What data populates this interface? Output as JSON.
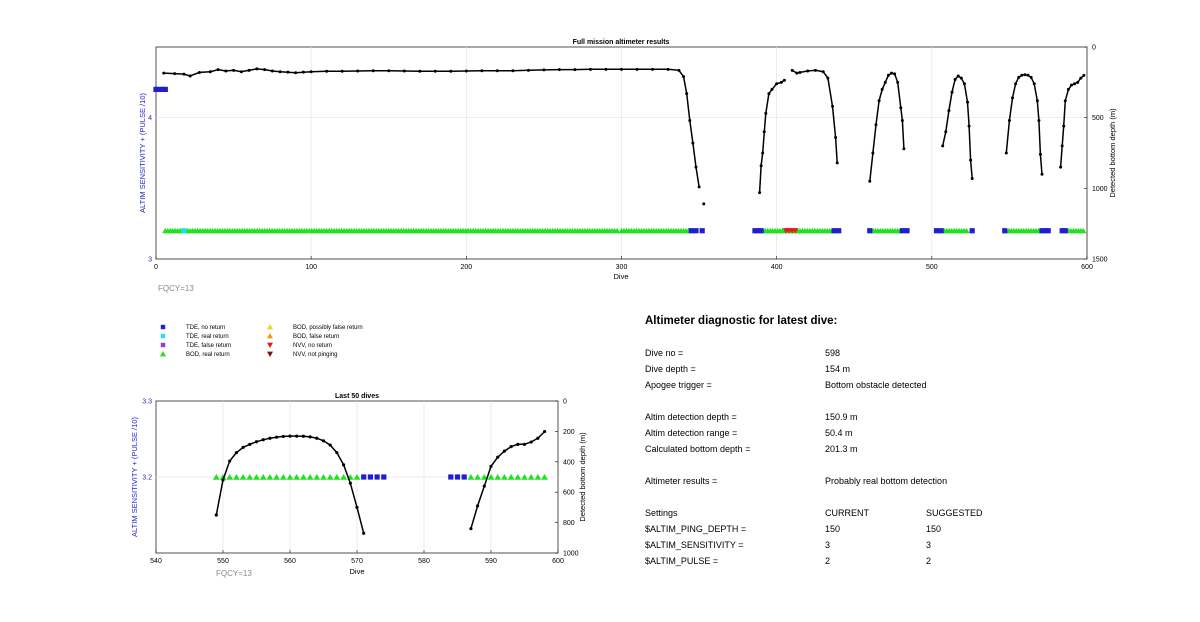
{
  "top_chart": {
    "title": "Full mission altimeter results",
    "xlabel": "Dive",
    "ylabel_left": "ALTIM SENSITIVITY + (PULSE /10)",
    "ylabel_right": "Detected bottom depth (m)",
    "x_ticks": [
      "0",
      "100",
      "200",
      "300",
      "400",
      "500",
      "600"
    ],
    "y_left_ticks": [
      "3",
      "4"
    ],
    "y_right_ticks": [
      "0",
      "500",
      "1000",
      "1500"
    ],
    "fqcy_label": "FQCY=13"
  },
  "bottom_chart": {
    "title": "Last 50 dives",
    "xlabel": "Dive",
    "ylabel_left": "ALTIM SENSITIVITY + (PULSE /10)",
    "ylabel_right": "Detected bottom depth (m)",
    "x_ticks": [
      "540",
      "550",
      "560",
      "570",
      "580",
      "590",
      "600"
    ],
    "y_left_ticks": [
      "3.2",
      "3.3"
    ],
    "y_right_ticks": [
      "0",
      "200",
      "400",
      "600",
      "800",
      "1000"
    ],
    "fqcy_label": "FQCY=13"
  },
  "legend": {
    "items": [
      {
        "label": "TDE, no return",
        "symbol": "square",
        "color": "#1f1fd0"
      },
      {
        "label": "TDE, real return",
        "symbol": "square",
        "color": "#22e0e8"
      },
      {
        "label": "TDE, false return",
        "symbol": "square",
        "color": "#8a3fd8"
      },
      {
        "label": "BOD, real return",
        "symbol": "triangle-up",
        "color": "#22e022"
      },
      {
        "label": "BOD, possibly false return",
        "symbol": "triangle-up",
        "color": "#f2d21a"
      },
      {
        "label": "BOD, false return",
        "symbol": "triangle-up",
        "color": "#f29a1a"
      },
      {
        "label": "NVV, no return",
        "symbol": "triangle-down",
        "color": "#e02020"
      },
      {
        "label": "NVV, not pinging",
        "symbol": "triangle-down",
        "color": "#7a1010"
      }
    ]
  },
  "diagnostic": {
    "title": "Altimeter diagnostic for latest dive:",
    "rows": [
      {
        "label": "Dive no =",
        "value": "598",
        "extra": ""
      },
      {
        "label": "Dive depth =",
        "value": "154 m",
        "extra": ""
      },
      {
        "label": "Apogee trigger =",
        "value": "Bottom obstacle detected",
        "extra": ""
      },
      {
        "label": "Altim detection depth =",
        "value": "150.9 m",
        "extra": ""
      },
      {
        "label": "Altim detection range =",
        "value": "50.4 m",
        "extra": ""
      },
      {
        "label": "Calculated bottom depth =",
        "value": "201.3 m",
        "extra": ""
      },
      {
        "label": "Altimeter results =",
        "value": "Probably real bottom detection",
        "extra": ""
      },
      {
        "label": "Settings",
        "value": "CURRENT",
        "extra": "SUGGESTED"
      },
      {
        "label": "$ALTIM_PING_DEPTH =",
        "value": "150",
        "extra": "150"
      },
      {
        "label": "$ALTIM_SENSITIVITY =",
        "value": "3",
        "extra": "3"
      },
      {
        "label": "$ALTIM_PULSE =",
        "value": "2",
        "extra": "2"
      }
    ]
  },
  "chart_data": [
    {
      "type": "scatter",
      "title": "Full mission altimeter results",
      "xlabel": "Dive",
      "ylabel": "ALTIM SENSITIVITY + (PULSE /10)",
      "ylabel_right": "Detected bottom depth (m)",
      "xlim": [
        0,
        600
      ],
      "ylim": [
        3,
        4.5
      ],
      "ylim_right": [
        1500,
        0
      ],
      "grid": true,
      "series": [
        {
          "name": "Detected bottom depth",
          "axis": "right",
          "style": "line-with-points",
          "color": "#000000",
          "segments": [
            [
              [
                5,
                185
              ],
              [
                12,
                188
              ],
              [
                18,
                192
              ],
              [
                22,
                205
              ],
              [
                28,
                180
              ],
              [
                35,
                175
              ],
              [
                40,
                160
              ],
              [
                45,
                170
              ],
              [
                50,
                165
              ],
              [
                55,
                175
              ],
              [
                60,
                165
              ],
              [
                65,
                155
              ],
              [
                70,
                160
              ],
              [
                75,
                170
              ],
              [
                80,
                175
              ],
              [
                85,
                178
              ],
              [
                90,
                182
              ],
              [
                95,
                178
              ],
              [
                100,
                175
              ],
              [
                110,
                172
              ],
              [
                120,
                172
              ],
              [
                130,
                170
              ],
              [
                140,
                168
              ],
              [
                150,
                168
              ],
              [
                160,
                170
              ],
              [
                170,
                172
              ],
              [
                180,
                172
              ],
              [
                190,
                172
              ],
              [
                200,
                170
              ],
              [
                210,
                168
              ],
              [
                220,
                168
              ],
              [
                230,
                168
              ],
              [
                240,
                165
              ],
              [
                250,
                162
              ],
              [
                260,
                160
              ],
              [
                270,
                160
              ],
              [
                280,
                158
              ],
              [
                290,
                158
              ],
              [
                300,
                158
              ],
              [
                310,
                158
              ],
              [
                320,
                158
              ],
              [
                330,
                158
              ],
              [
                337,
                165
              ],
              [
                340,
                210
              ],
              [
                342,
                330
              ],
              [
                344,
                520
              ],
              [
                346,
                680
              ],
              [
                348,
                850
              ],
              [
                350,
                990
              ]
            ],
            [
              [
                353,
                1110
              ]
            ],
            [
              [
                389,
                1030
              ],
              [
                390,
                840
              ],
              [
                391,
                750
              ],
              [
                392,
                600
              ],
              [
                393,
                470
              ],
              [
                395,
                330
              ],
              [
                397,
                300
              ],
              [
                400,
                260
              ],
              [
                403,
                250
              ],
              [
                405,
                235
              ]
            ],
            [
              [
                410,
                165
              ],
              [
                413,
                185
              ],
              [
                415,
                180
              ],
              [
                420,
                170
              ],
              [
                425,
                165
              ],
              [
                430,
                175
              ],
              [
                433,
                220
              ],
              [
                436,
                420
              ],
              [
                438,
                640
              ],
              [
                439,
                820
              ]
            ],
            [
              [
                460,
                950
              ],
              [
                462,
                750
              ],
              [
                464,
                550
              ],
              [
                466,
                380
              ],
              [
                468,
                300
              ],
              [
                470,
                250
              ],
              [
                472,
                200
              ],
              [
                474,
                185
              ],
              [
                476,
                190
              ],
              [
                478,
                250
              ],
              [
                480,
                430
              ],
              [
                481,
                520
              ],
              [
                482,
                720
              ]
            ],
            [
              [
                507,
                700
              ],
              [
                509,
                600
              ],
              [
                511,
                450
              ],
              [
                513,
                320
              ],
              [
                515,
                230
              ],
              [
                517,
                205
              ],
              [
                519,
                220
              ],
              [
                521,
                260
              ],
              [
                523,
                390
              ],
              [
                524,
                560
              ],
              [
                525,
                800
              ],
              [
                526,
                930
              ]
            ],
            [
              [
                548,
                750
              ],
              [
                550,
                520
              ],
              [
                552,
                360
              ],
              [
                554,
                260
              ],
              [
                556,
                215
              ],
              [
                558,
                200
              ],
              [
                560,
                196
              ],
              [
                562,
                200
              ],
              [
                564,
                215
              ],
              [
                566,
                260
              ],
              [
                568,
                380
              ],
              [
                569,
                520
              ],
              [
                570,
                760
              ],
              [
                571,
                900
              ]
            ],
            [
              [
                583,
                850
              ],
              [
                584,
                700
              ],
              [
                585,
                560
              ],
              [
                586,
                380
              ],
              [
                588,
                300
              ],
              [
                590,
                270
              ],
              [
                592,
                260
              ],
              [
                594,
                250
              ],
              [
                596,
                220
              ],
              [
                598,
                201
              ]
            ]
          ]
        },
        {
          "name": "TDE, no return",
          "axis": "left",
          "points": [
            [
              0,
              4.2
            ],
            [
              2,
              4.2
            ],
            [
              4,
              4.2
            ],
            [
              6,
              4.2
            ],
            [
              345,
              3.2
            ],
            [
              348,
              3.2
            ],
            [
              352,
              3.2
            ],
            [
              386,
              3.2
            ],
            [
              388,
              3.2
            ],
            [
              390,
              3.2
            ],
            [
              437,
              3.2
            ],
            [
              440,
              3.2
            ],
            [
              460,
              3.2
            ],
            [
              481,
              3.2
            ],
            [
              484,
              3.2
            ],
            [
              503,
              3.2
            ],
            [
              506,
              3.2
            ],
            [
              526,
              3.2
            ],
            [
              547,
              3.2
            ],
            [
              571,
              3.2
            ],
            [
              573,
              3.2
            ],
            [
              575,
              3.2
            ],
            [
              584,
              3.2
            ],
            [
              586,
              3.2
            ]
          ]
        },
        {
          "name": "TDE, real return",
          "axis": "left",
          "points": [
            [
              18,
              3.2
            ]
          ]
        },
        {
          "name": "BOD, real return",
          "axis": "left",
          "range_blocks": [
            [
              6,
              298
            ],
            [
              300,
              344
            ],
            [
              391,
              436
            ],
            [
              462,
              480
            ],
            [
              508,
              524
            ],
            [
              548,
              570
            ],
            [
              588,
              598
            ]
          ],
          "value": 3.2
        },
        {
          "name": "NVV, no return",
          "axis": "left",
          "points": [
            [
              406,
              3.2
            ],
            [
              408,
              3.2
            ],
            [
              410,
              3.2
            ],
            [
              412,
              3.2
            ]
          ]
        }
      ]
    },
    {
      "type": "scatter",
      "title": "Last 50 dives",
      "xlabel": "Dive",
      "ylabel": "ALTIM SENSITIVITY + (PULSE /10)",
      "ylabel_right": "Detected bottom depth (m)",
      "xlim": [
        540,
        600
      ],
      "ylim": [
        3.1,
        3.3
      ],
      "ylim_right": [
        1000,
        0
      ],
      "grid": true,
      "series": [
        {
          "name": "Detected bottom depth",
          "axis": "right",
          "style": "line-with-points",
          "color": "#000000",
          "segments": [
            [
              [
                549,
                750
              ],
              [
                550,
                520
              ],
              [
                551,
                395
              ],
              [
                552,
                340
              ],
              [
                553,
                305
              ],
              [
                554,
                285
              ],
              [
                555,
                268
              ],
              [
                556,
                255
              ],
              [
                557,
                245
              ],
              [
                558,
                238
              ],
              [
                559,
                233
              ],
              [
                560,
                231
              ],
              [
                561,
                231
              ],
              [
                562,
                232
              ],
              [
                563,
                236
              ],
              [
                564,
                245
              ],
              [
                565,
                262
              ],
              [
                566,
                290
              ],
              [
                567,
                340
              ],
              [
                568,
                420
              ],
              [
                569,
                540
              ],
              [
                570,
                700
              ],
              [
                571,
                870
              ]
            ],
            [
              [
                587,
                840
              ],
              [
                588,
                690
              ],
              [
                589,
                560
              ],
              [
                590,
                430
              ],
              [
                591,
                370
              ],
              [
                592,
                330
              ],
              [
                593,
                300
              ],
              [
                594,
                285
              ],
              [
                595,
                285
              ],
              [
                596,
                270
              ],
              [
                597,
                245
              ],
              [
                598,
                201
              ]
            ]
          ]
        },
        {
          "name": "BOD, real return",
          "axis": "left",
          "x": [
            549,
            550,
            551,
            552,
            553,
            554,
            555,
            556,
            557,
            558,
            559,
            560,
            561,
            562,
            563,
            564,
            565,
            566,
            567,
            568,
            569,
            570,
            587,
            588,
            589,
            590,
            591,
            592,
            593,
            594,
            595,
            596,
            597,
            598
          ],
          "value": 3.2
        },
        {
          "name": "TDE, no return",
          "axis": "left",
          "x": [
            571,
            572,
            573,
            574,
            584,
            585,
            586
          ],
          "value": 3.2
        }
      ]
    }
  ]
}
